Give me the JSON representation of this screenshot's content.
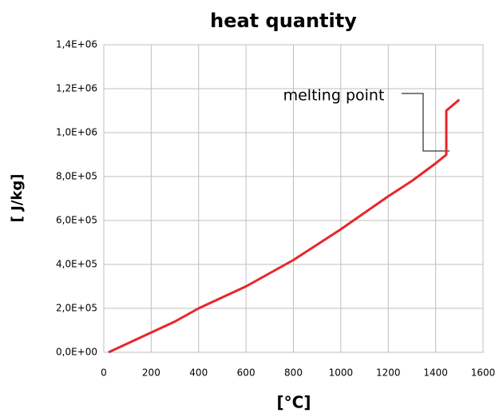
{
  "chart_data": {
    "type": "line",
    "title": "heat quantity",
    "x_label": "[°C]",
    "y_label": "[ J/kg]",
    "annotation": "melting point",
    "x": [
      20,
      300,
      400,
      600,
      800,
      1000,
      1200,
      1300,
      1400,
      1440,
      1445,
      1445,
      1500
    ],
    "series": [
      {
        "name": "heat quantity",
        "color": "#e8262b",
        "values": [
          0,
          140000,
          200000,
          300000,
          420000,
          560000,
          710000,
          780000,
          860000,
          895000,
          900000,
          1100000,
          1150000
        ]
      }
    ],
    "xlim": [
      0,
      1600
    ],
    "xticks": [
      0,
      200,
      400,
      600,
      800,
      1000,
      1200,
      1400,
      1600
    ],
    "ylim": [
      0,
      1400000
    ],
    "yticks": [
      {
        "value": 0,
        "label": "0,0E+00"
      },
      {
        "value": 200000,
        "label": "2,0E+05"
      },
      {
        "value": 400000,
        "label": "4,0E+05"
      },
      {
        "value": 600000,
        "label": "6,0E+05"
      },
      {
        "value": 800000,
        "label": "8,0E+05"
      },
      {
        "value": 1000000,
        "label": "1,0E+06"
      },
      {
        "value": 1200000,
        "label": "1,2E+06"
      },
      {
        "value": 1400000,
        "label": "1,4E+06"
      }
    ],
    "grid": true
  }
}
